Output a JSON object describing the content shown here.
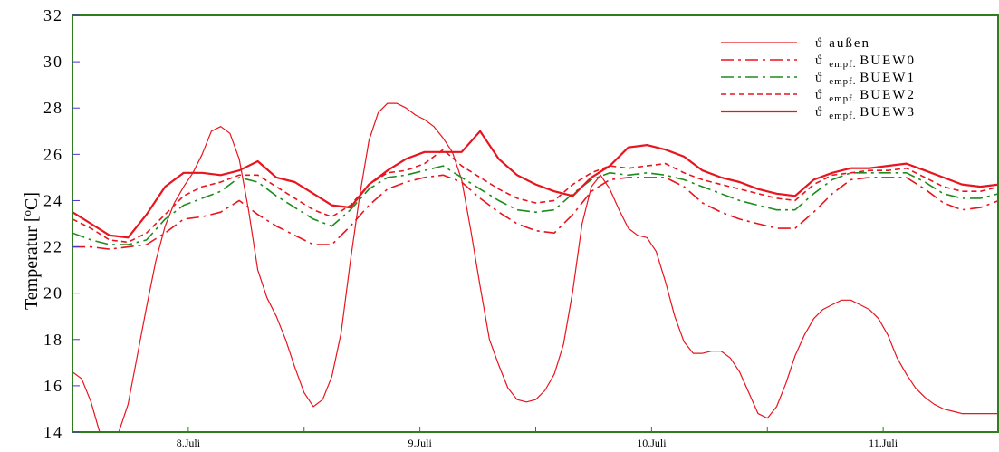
{
  "chart_data": {
    "type": "line",
    "title": "",
    "xlabel": "",
    "ylabel": "Temperatur [",
    "ylabel_sup": "o",
    "ylabel_end": "C]",
    "ylim": [
      14,
      32
    ],
    "y_ticks": [
      "14",
      "16",
      "18",
      "20",
      "22",
      "24",
      "26",
      "28",
      "30",
      "32"
    ],
    "xlim": [
      0,
      100
    ],
    "x_day_ticks": [
      {
        "label": "8.Juli",
        "x": 12.5
      },
      {
        "label": "9.Juli",
        "x": 37.5
      },
      {
        "label": "10.Juli",
        "x": 62.5
      },
      {
        "label": "11.Juli",
        "x": 87.5
      }
    ],
    "x_minor_ticks": [
      25,
      50,
      75
    ],
    "grid": false,
    "legend_position": "top-right",
    "colors": {
      "axis": "#2e7d1e",
      "red": "#e8141e",
      "green": "#1e8c1e",
      "ytick": "#4a36c8"
    },
    "series": [
      {
        "name": "ϑ außen",
        "symbol": "ϑ",
        "sub": "",
        "suffix": "außen",
        "color": "#e8141e",
        "dash": "",
        "width": 1.2,
        "x": [
          0,
          1,
          2,
          3,
          4,
          5,
          6,
          7,
          8,
          9,
          10,
          11,
          12,
          13,
          14,
          15,
          16,
          17,
          18,
          19,
          20,
          21,
          22,
          23,
          24,
          25,
          26,
          27,
          28,
          29,
          30,
          31,
          32,
          33,
          34,
          35,
          36,
          37,
          38,
          39,
          40,
          41,
          42,
          43,
          44,
          45,
          46,
          47,
          48,
          49,
          50,
          51,
          52,
          53,
          54,
          55,
          56,
          57,
          58,
          59,
          60,
          61,
          62,
          63,
          64,
          65,
          66,
          67,
          68,
          69,
          70,
          71,
          72,
          73,
          74,
          75,
          76,
          77,
          78,
          79,
          80,
          81,
          82,
          83,
          84,
          85,
          86,
          87,
          88,
          89,
          90,
          91,
          92,
          93,
          94,
          95,
          96,
          97,
          98,
          99,
          100
        ],
        "values": [
          16.6,
          16.3,
          15.3,
          13.9,
          13.6,
          14.0,
          15.2,
          17.3,
          19.4,
          21.4,
          22.9,
          23.9,
          24.6,
          25.2,
          26.0,
          27.0,
          27.2,
          26.9,
          25.8,
          23.6,
          21.0,
          19.8,
          19.0,
          18.0,
          16.8,
          15.7,
          15.1,
          15.4,
          16.4,
          18.3,
          21.4,
          24.2,
          26.6,
          27.8,
          28.2,
          28.2,
          28.0,
          27.7,
          27.5,
          27.2,
          26.7,
          26.1,
          24.9,
          22.7,
          20.3,
          18.0,
          16.9,
          15.9,
          15.4,
          15.3,
          15.4,
          15.8,
          16.5,
          17.8,
          20.1,
          23.0,
          24.6,
          25.1,
          24.5,
          23.6,
          22.8,
          22.5,
          22.4,
          21.8,
          20.5,
          19.0,
          17.9,
          17.4,
          17.4,
          17.5,
          17.5,
          17.2,
          16.6,
          15.7,
          14.8,
          14.6,
          15.1,
          16.1,
          17.3,
          18.2,
          18.9,
          19.3,
          19.5,
          19.7,
          19.7,
          19.5,
          19.3,
          18.9,
          18.2,
          17.2,
          16.5,
          15.9,
          15.5,
          15.2,
          15.0,
          14.9,
          14.8,
          14.8,
          14.8,
          14.8,
          14.8
        ]
      },
      {
        "name": "ϑ empf. BUEW0",
        "symbol": "ϑ",
        "sub": "empf.",
        "suffix": "BUEW0",
        "color": "#e8141e",
        "dash": "14,5,3,5",
        "width": 1.6,
        "x": [
          0,
          2,
          4,
          6,
          8,
          10,
          12,
          14,
          16,
          18,
          20,
          22,
          24,
          26,
          28,
          30,
          32,
          34,
          36,
          38,
          40,
          42,
          44,
          46,
          48,
          50,
          52,
          54,
          56,
          58,
          60,
          62,
          64,
          66,
          68,
          70,
          72,
          74,
          76,
          78,
          80,
          82,
          84,
          86,
          88,
          90,
          92,
          94,
          96,
          98,
          100
        ],
        "values": [
          22.0,
          22.0,
          21.9,
          22.0,
          22.1,
          22.6,
          23.2,
          23.3,
          23.5,
          24.0,
          23.4,
          22.9,
          22.5,
          22.1,
          22.1,
          22.9,
          23.8,
          24.5,
          24.8,
          25.0,
          25.1,
          24.8,
          24.1,
          23.5,
          23.0,
          22.7,
          22.6,
          23.4,
          24.4,
          24.9,
          25.0,
          25.0,
          25.0,
          24.6,
          23.9,
          23.5,
          23.2,
          23.0,
          22.8,
          22.8,
          23.5,
          24.3,
          24.9,
          25.0,
          25.0,
          25.0,
          24.5,
          23.9,
          23.6,
          23.7,
          24.0
        ]
      },
      {
        "name": "ϑ empf. BUEW1",
        "symbol": "ϑ",
        "sub": "empf.",
        "suffix": "BUEW1",
        "color": "#1e8c1e",
        "dash": "14,5,3,5",
        "width": 1.6,
        "x": [
          0,
          2,
          4,
          6,
          8,
          10,
          12,
          14,
          16,
          18,
          20,
          22,
          24,
          26,
          28,
          30,
          32,
          34,
          36,
          38,
          40,
          42,
          44,
          46,
          48,
          50,
          52,
          54,
          56,
          58,
          60,
          62,
          64,
          66,
          68,
          70,
          72,
          74,
          76,
          78,
          80,
          82,
          84,
          86,
          88,
          90,
          92,
          94,
          96,
          98,
          100
        ],
        "values": [
          22.6,
          22.3,
          22.1,
          22.1,
          22.3,
          23.2,
          23.8,
          24.1,
          24.4,
          25.0,
          24.8,
          24.2,
          23.7,
          23.2,
          22.9,
          23.6,
          24.5,
          25.0,
          25.1,
          25.3,
          25.5,
          25.0,
          24.5,
          24.0,
          23.6,
          23.5,
          23.6,
          24.3,
          24.9,
          25.2,
          25.1,
          25.2,
          25.1,
          24.9,
          24.6,
          24.3,
          24.0,
          23.8,
          23.6,
          23.6,
          24.3,
          24.9,
          25.2,
          25.2,
          25.2,
          25.2,
          24.8,
          24.3,
          24.1,
          24.1,
          24.3
        ]
      },
      {
        "name": "ϑ empf. BUEW2",
        "symbol": "ϑ",
        "sub": "empf.",
        "suffix": "BUEW2",
        "color": "#e8141e",
        "dash": "6,4",
        "width": 1.6,
        "x": [
          0,
          2,
          4,
          6,
          8,
          10,
          12,
          14,
          16,
          18,
          20,
          22,
          24,
          26,
          28,
          30,
          32,
          34,
          36,
          38,
          40,
          42,
          44,
          46,
          48,
          50,
          52,
          54,
          56,
          58,
          60,
          62,
          64,
          66,
          68,
          70,
          72,
          74,
          76,
          78,
          80,
          82,
          84,
          86,
          88,
          90,
          92,
          94,
          96,
          98,
          100
        ],
        "values": [
          23.2,
          22.8,
          22.3,
          22.2,
          22.6,
          23.4,
          24.2,
          24.6,
          24.8,
          25.1,
          25.1,
          24.6,
          24.1,
          23.6,
          23.3,
          23.8,
          24.7,
          25.2,
          25.3,
          25.6,
          26.2,
          25.5,
          25.0,
          24.5,
          24.1,
          23.9,
          24.0,
          24.7,
          25.2,
          25.5,
          25.4,
          25.5,
          25.6,
          25.2,
          24.9,
          24.7,
          24.5,
          24.3,
          24.1,
          24.0,
          24.7,
          25.1,
          25.2,
          25.3,
          25.3,
          25.4,
          25.0,
          24.6,
          24.4,
          24.4,
          24.6
        ]
      },
      {
        "name": "ϑ empf. BUEW3",
        "symbol": "ϑ",
        "sub": "empf.",
        "suffix": "BUEW3",
        "color": "#e8141e",
        "dash": "",
        "width": 2.2,
        "x": [
          0,
          2,
          4,
          6,
          8,
          10,
          12,
          14,
          16,
          18,
          20,
          22,
          24,
          26,
          28,
          30,
          32,
          34,
          36,
          38,
          40,
          42,
          44,
          46,
          48,
          50,
          52,
          54,
          56,
          58,
          60,
          62,
          64,
          66,
          68,
          70,
          72,
          74,
          76,
          78,
          80,
          82,
          84,
          86,
          88,
          90,
          92,
          94,
          96,
          98,
          100
        ],
        "values": [
          23.5,
          23.0,
          22.5,
          22.4,
          23.4,
          24.6,
          25.2,
          25.2,
          25.1,
          25.3,
          25.7,
          25.0,
          24.8,
          24.3,
          23.8,
          23.7,
          24.7,
          25.3,
          25.8,
          26.1,
          26.1,
          26.1,
          27.0,
          25.8,
          25.1,
          24.7,
          24.4,
          24.2,
          25.0,
          25.5,
          26.3,
          26.4,
          26.2,
          25.9,
          25.3,
          25.0,
          24.8,
          24.5,
          24.3,
          24.2,
          24.9,
          25.2,
          25.4,
          25.4,
          25.5,
          25.6,
          25.3,
          25.0,
          24.7,
          24.6,
          24.7
        ]
      }
    ]
  }
}
